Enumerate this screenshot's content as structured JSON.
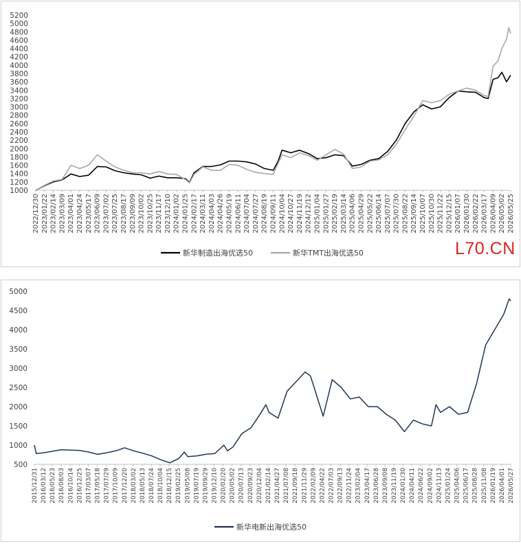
{
  "watermark": "L70.CN",
  "colors": {
    "series_black": "#000000",
    "series_gray": "#a6a6a6",
    "series_navy": "#1f3352",
    "axis": "#bfbfbf"
  },
  "chart_data": [
    {
      "type": "line",
      "title": "",
      "xlabel": "",
      "ylabel": "",
      "ylim": [
        1000,
        5200
      ],
      "y_ticks": [
        1000,
        1200,
        1400,
        1600,
        1800,
        2000,
        2200,
        2400,
        2600,
        2800,
        3000,
        3200,
        3400,
        3600,
        3800,
        4000,
        4200,
        4400,
        4600,
        4800,
        5000,
        5200
      ],
      "x_range": [
        "2022-12-30",
        "2026-05-25"
      ],
      "x_tick_labels": [
        "2022/12/30",
        "2023/01/22",
        "2023/02/14",
        "2023/03/09",
        "2023/04/01",
        "2023/04/24",
        "2023/05/17",
        "2023/06/09",
        "2023/07/02",
        "2023/07/25",
        "2023/08/17",
        "2023/09/09",
        "2023/10/02",
        "2023/10/25",
        "2023/11/17",
        "2023/12/10",
        "2024/01/02",
        "2024/01/25",
        "2024/02/17",
        "2024/03/11",
        "2024/04/03",
        "2024/04/26",
        "2024/05/19",
        "2024/06/11",
        "2024/07/04",
        "2024/07/27",
        "2024/08/19",
        "2024/09/11",
        "2024/10/04",
        "2024/10/27",
        "2024/11/19",
        "2024/12/12",
        "2025/01/04",
        "2025/01/27",
        "2025/02/19",
        "2025/03/14",
        "2025/04/06",
        "2025/04/29",
        "2025/05/22",
        "2025/06/14",
        "2025/07/07",
        "2025/07/30",
        "2025/08/22",
        "2025/09/14",
        "2025/10/07",
        "2025/10/30",
        "2025/11/22",
        "2025/12/15",
        "2026/01/07",
        "2026/01/30",
        "2026/02/22",
        "2026/03/17",
        "2026/04/09",
        "2026/05/02",
        "2026/05/25"
      ],
      "legend_position": "bottom",
      "series": [
        {
          "name": "新华制造出海优选50",
          "color": "#000000",
          "points": [
            [
              "2022-12-30",
              1000
            ],
            [
              "2023-01-22",
              1110
            ],
            [
              "2023-02-14",
              1200
            ],
            [
              "2023-03-09",
              1250
            ],
            [
              "2023-04-01",
              1390
            ],
            [
              "2023-04-24",
              1330
            ],
            [
              "2023-05-17",
              1360
            ],
            [
              "2023-06-09",
              1570
            ],
            [
              "2023-07-02",
              1560
            ],
            [
              "2023-07-25",
              1470
            ],
            [
              "2023-08-17",
              1420
            ],
            [
              "2023-09-09",
              1390
            ],
            [
              "2023-10-02",
              1370
            ],
            [
              "2023-10-25",
              1290
            ],
            [
              "2023-11-17",
              1340
            ],
            [
              "2023-12-10",
              1300
            ],
            [
              "2024-01-02",
              1300
            ],
            [
              "2024-01-25",
              1280
            ],
            [
              "2024-02-05",
              1190
            ],
            [
              "2024-02-17",
              1420
            ],
            [
              "2024-03-11",
              1570
            ],
            [
              "2024-04-03",
              1570
            ],
            [
              "2024-04-26",
              1610
            ],
            [
              "2024-05-19",
              1700
            ],
            [
              "2024-06-11",
              1700
            ],
            [
              "2024-07-04",
              1680
            ],
            [
              "2024-07-27",
              1630
            ],
            [
              "2024-08-19",
              1520
            ],
            [
              "2024-09-11",
              1480
            ],
            [
              "2024-09-24",
              1700
            ],
            [
              "2024-10-04",
              1960
            ],
            [
              "2024-10-27",
              1900
            ],
            [
              "2024-11-19",
              1960
            ],
            [
              "2024-12-12",
              1880
            ],
            [
              "2025-01-04",
              1760
            ],
            [
              "2025-01-27",
              1780
            ],
            [
              "2025-02-19",
              1850
            ],
            [
              "2025-03-14",
              1830
            ],
            [
              "2025-04-06",
              1580
            ],
            [
              "2025-04-29",
              1620
            ],
            [
              "2025-05-22",
              1720
            ],
            [
              "2025-06-14",
              1760
            ],
            [
              "2025-07-07",
              1930
            ],
            [
              "2025-07-30",
              2200
            ],
            [
              "2025-08-22",
              2600
            ],
            [
              "2025-09-14",
              2880
            ],
            [
              "2025-10-07",
              3050
            ],
            [
              "2025-10-30",
              2950
            ],
            [
              "2025-11-22",
              3000
            ],
            [
              "2025-12-15",
              3220
            ],
            [
              "2026-01-07",
              3380
            ],
            [
              "2026-01-30",
              3360
            ],
            [
              "2026-02-22",
              3350
            ],
            [
              "2026-03-17",
              3220
            ],
            [
              "2026-03-27",
              3200
            ],
            [
              "2026-04-09",
              3660
            ],
            [
              "2026-04-22",
              3700
            ],
            [
              "2026-05-02",
              3830
            ],
            [
              "2026-05-14",
              3600
            ],
            [
              "2026-05-25",
              3760
            ]
          ]
        },
        {
          "name": "新华TMT出海优选50",
          "color": "#a6a6a6",
          "points": [
            [
              "2022-12-30",
              1000
            ],
            [
              "2023-01-22",
              1120
            ],
            [
              "2023-02-14",
              1220
            ],
            [
              "2023-03-09",
              1260
            ],
            [
              "2023-04-01",
              1600
            ],
            [
              "2023-04-24",
              1520
            ],
            [
              "2023-05-17",
              1600
            ],
            [
              "2023-06-09",
              1850
            ],
            [
              "2023-07-02",
              1700
            ],
            [
              "2023-07-25",
              1560
            ],
            [
              "2023-08-17",
              1480
            ],
            [
              "2023-09-09",
              1420
            ],
            [
              "2023-10-02",
              1420
            ],
            [
              "2023-10-25",
              1390
            ],
            [
              "2023-11-17",
              1450
            ],
            [
              "2023-12-10",
              1390
            ],
            [
              "2024-01-02",
              1380
            ],
            [
              "2024-01-25",
              1260
            ],
            [
              "2024-02-05",
              1180
            ],
            [
              "2024-02-17",
              1380
            ],
            [
              "2024-03-11",
              1560
            ],
            [
              "2024-04-03",
              1480
            ],
            [
              "2024-04-26",
              1480
            ],
            [
              "2024-05-19",
              1620
            ],
            [
              "2024-06-11",
              1600
            ],
            [
              "2024-07-04",
              1500
            ],
            [
              "2024-07-27",
              1430
            ],
            [
              "2024-08-19",
              1400
            ],
            [
              "2024-09-11",
              1380
            ],
            [
              "2024-09-24",
              1650
            ],
            [
              "2024-10-04",
              1850
            ],
            [
              "2024-10-27",
              1780
            ],
            [
              "2024-11-19",
              1900
            ],
            [
              "2024-12-12",
              1830
            ],
            [
              "2025-01-04",
              1720
            ],
            [
              "2025-01-27",
              1850
            ],
            [
              "2025-02-19",
              1980
            ],
            [
              "2025-03-14",
              1870
            ],
            [
              "2025-04-06",
              1520
            ],
            [
              "2025-04-29",
              1560
            ],
            [
              "2025-05-22",
              1700
            ],
            [
              "2025-06-14",
              1730
            ],
            [
              "2025-07-07",
              1850
            ],
            [
              "2025-07-30",
              2100
            ],
            [
              "2025-08-22",
              2450
            ],
            [
              "2025-09-14",
              2780
            ],
            [
              "2025-10-07",
              3150
            ],
            [
              "2025-10-30",
              3100
            ],
            [
              "2025-11-22",
              3150
            ],
            [
              "2025-12-15",
              3300
            ],
            [
              "2026-01-07",
              3380
            ],
            [
              "2026-01-30",
              3450
            ],
            [
              "2026-02-22",
              3400
            ],
            [
              "2026-03-17",
              3270
            ],
            [
              "2026-03-27",
              3250
            ],
            [
              "2026-04-09",
              3980
            ],
            [
              "2026-04-22",
              4100
            ],
            [
              "2026-05-02",
              4400
            ],
            [
              "2026-05-14",
              4620
            ],
            [
              "2026-05-20",
              4900
            ],
            [
              "2026-05-25",
              4760
            ]
          ]
        }
      ]
    },
    {
      "type": "line",
      "title": "",
      "xlabel": "",
      "ylabel": "",
      "ylim": [
        500,
        5000
      ],
      "y_ticks": [
        500,
        1000,
        1500,
        2000,
        2500,
        3000,
        3500,
        4000,
        4500,
        5000
      ],
      "x_range": [
        "2015-12-31",
        "2026-05-27"
      ],
      "x_tick_labels": [
        "2015/12/31",
        "2016/03/12",
        "2016/05/23",
        "2016/08/03",
        "2016/10/14",
        "2016/12/25",
        "2017/03/07",
        "2017/05/18",
        "2017/07/29",
        "2017/10/09",
        "2017/12/20",
        "2018/03/02",
        "2018/05/13",
        "2018/07/24",
        "2018/10/04",
        "2018/12/15",
        "2019/02/25",
        "2019/05/08",
        "2019/07/19",
        "2019/09/29",
        "2019/12/10",
        "2020/02/20",
        "2020/05/02",
        "2020/07/13",
        "2020/09/23",
        "2020/12/04",
        "2021/02/14",
        "2021/04/27",
        "2021/07/08",
        "2021/09/18",
        "2021/11/29",
        "2022/02/09",
        "2022/04/22",
        "2022/07/03",
        "2022/09/13",
        "2022/11/24",
        "2023/02/04",
        "2023/04/17",
        "2023/06/28",
        "2023/09/08",
        "2023/11/19",
        "2024/01/30",
        "2024/04/11",
        "2024/06/22",
        "2024/09/02",
        "2024/11/13",
        "2025/01/24",
        "2025/04/06",
        "2025/06/17",
        "2025/08/28",
        "2025/11/08",
        "2026/01/19",
        "2026/04/01",
        "2026/05/27"
      ],
      "legend_position": "bottom",
      "series": [
        {
          "name": "新华电新出海优选50",
          "color": "#1f3352",
          "points": [
            [
              "2015-12-31",
              1000
            ],
            [
              "2016-01-15",
              780
            ],
            [
              "2016-03-12",
              800
            ],
            [
              "2016-05-23",
              840
            ],
            [
              "2016-08-03",
              880
            ],
            [
              "2016-10-14",
              870
            ],
            [
              "2016-12-25",
              860
            ],
            [
              "2017-03-07",
              820
            ],
            [
              "2017-05-18",
              760
            ],
            [
              "2017-07-29",
              800
            ],
            [
              "2017-10-09",
              850
            ],
            [
              "2017-12-20",
              930
            ],
            [
              "2018-03-02",
              850
            ],
            [
              "2018-05-13",
              790
            ],
            [
              "2018-07-24",
              720
            ],
            [
              "2018-10-04",
              620
            ],
            [
              "2018-12-15",
              540
            ],
            [
              "2019-02-25",
              650
            ],
            [
              "2019-04-10",
              820
            ],
            [
              "2019-05-08",
              700
            ],
            [
              "2019-07-19",
              720
            ],
            [
              "2019-09-29",
              760
            ],
            [
              "2019-12-10",
              780
            ],
            [
              "2020-02-20",
              1000
            ],
            [
              "2020-03-20",
              850
            ],
            [
              "2020-05-02",
              950
            ],
            [
              "2020-07-13",
              1300
            ],
            [
              "2020-09-23",
              1450
            ],
            [
              "2020-12-04",
              1800
            ],
            [
              "2021-01-20",
              2050
            ],
            [
              "2021-02-14",
              1850
            ],
            [
              "2021-04-27",
              1700
            ],
            [
              "2021-07-08",
              2400
            ],
            [
              "2021-09-18",
              2650
            ],
            [
              "2021-11-29",
              2900
            ],
            [
              "2022-01-10",
              2800
            ],
            [
              "2022-02-09",
              2500
            ],
            [
              "2022-04-22",
              1750
            ],
            [
              "2022-07-03",
              2700
            ],
            [
              "2022-09-13",
              2500
            ],
            [
              "2022-11-24",
              2200
            ],
            [
              "2023-02-04",
              2250
            ],
            [
              "2023-04-17",
              2000
            ],
            [
              "2023-06-28",
              2000
            ],
            [
              "2023-09-08",
              1800
            ],
            [
              "2023-11-19",
              1650
            ],
            [
              "2024-01-30",
              1350
            ],
            [
              "2024-04-11",
              1650
            ],
            [
              "2024-06-22",
              1550
            ],
            [
              "2024-09-02",
              1500
            ],
            [
              "2024-10-08",
              2050
            ],
            [
              "2024-11-13",
              1850
            ],
            [
              "2025-01-24",
              2000
            ],
            [
              "2025-04-06",
              1800
            ],
            [
              "2025-06-17",
              1850
            ],
            [
              "2025-08-28",
              2600
            ],
            [
              "2025-11-08",
              3600
            ],
            [
              "2026-01-19",
              4000
            ],
            [
              "2026-04-01",
              4400
            ],
            [
              "2026-05-15",
              4800
            ],
            [
              "2026-05-27",
              4750
            ]
          ]
        }
      ]
    }
  ]
}
